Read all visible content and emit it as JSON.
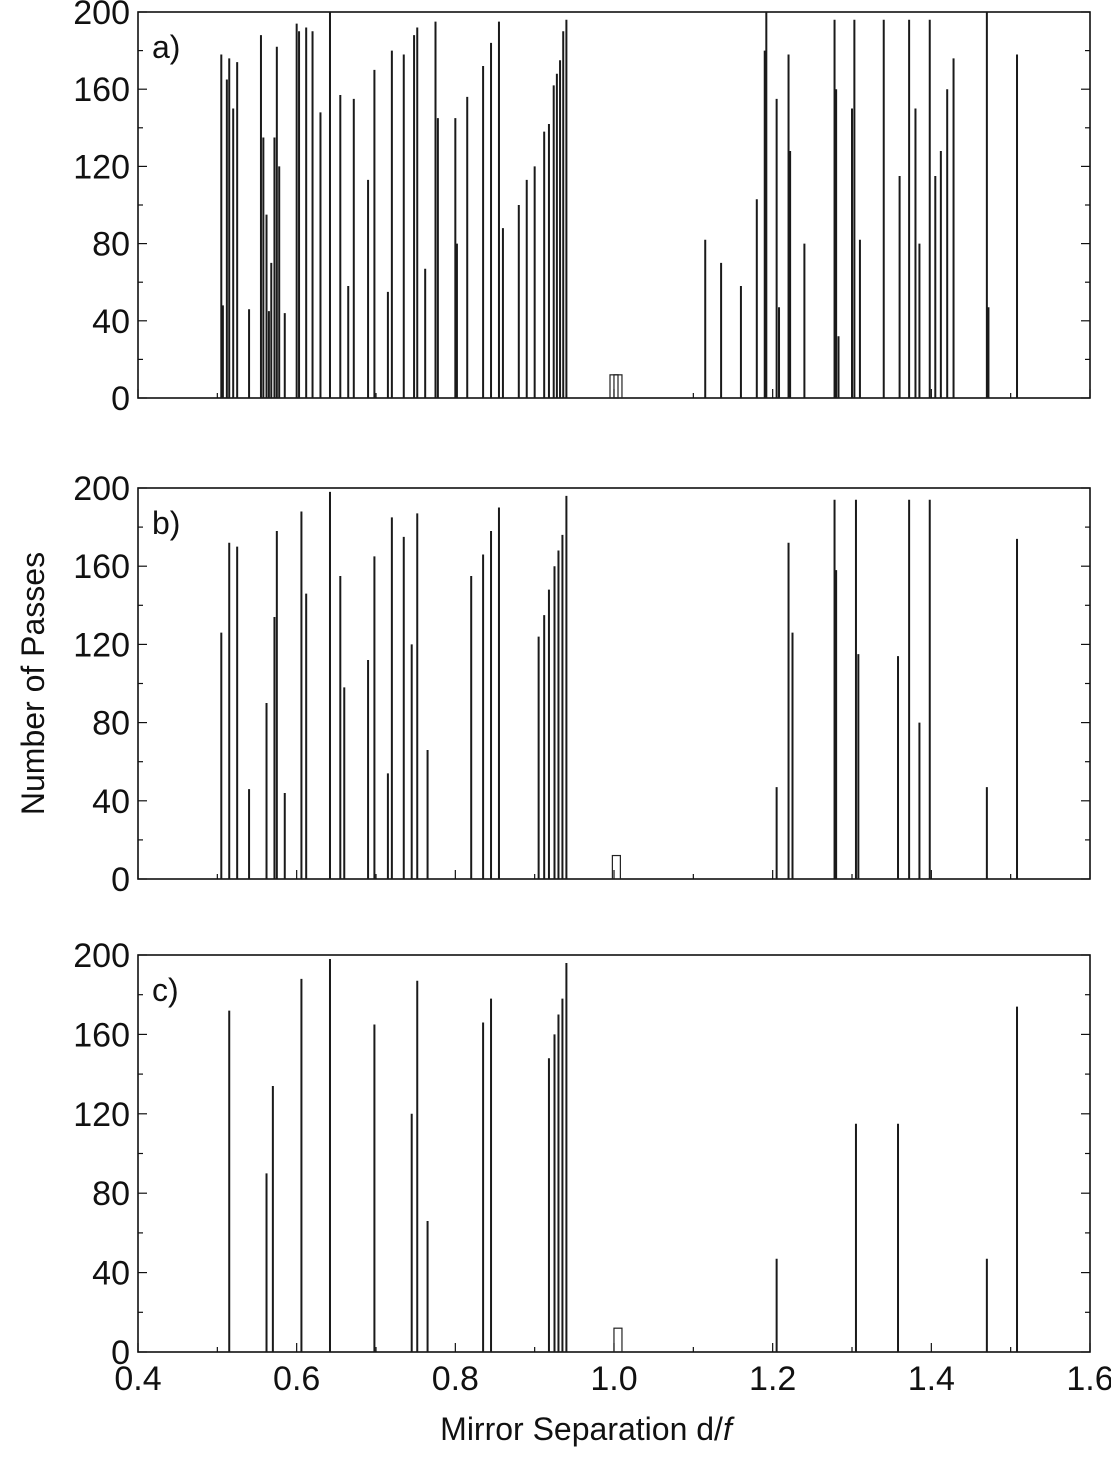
{
  "chart_data": [
    {
      "type": "bar",
      "panel_label": "a)",
      "xlim": [
        0.4,
        1.6
      ],
      "ylim": [
        0,
        200
      ],
      "y_ticks": [
        "0",
        "40",
        "80",
        "120",
        "160",
        "200"
      ],
      "grid": false,
      "bars": [
        {
          "x": 0.505,
          "y": 178
        },
        {
          "x": 0.507,
          "y": 48
        },
        {
          "x": 0.512,
          "y": 165
        },
        {
          "x": 0.515,
          "y": 176
        },
        {
          "x": 0.52,
          "y": 150
        },
        {
          "x": 0.525,
          "y": 174
        },
        {
          "x": 0.54,
          "y": 46
        },
        {
          "x": 0.555,
          "y": 188
        },
        {
          "x": 0.558,
          "y": 135
        },
        {
          "x": 0.562,
          "y": 95
        },
        {
          "x": 0.565,
          "y": 45
        },
        {
          "x": 0.568,
          "y": 70
        },
        {
          "x": 0.572,
          "y": 135
        },
        {
          "x": 0.575,
          "y": 182
        },
        {
          "x": 0.578,
          "y": 120
        },
        {
          "x": 0.585,
          "y": 44
        },
        {
          "x": 0.6,
          "y": 194
        },
        {
          "x": 0.603,
          "y": 190
        },
        {
          "x": 0.612,
          "y": 192
        },
        {
          "x": 0.62,
          "y": 190
        },
        {
          "x": 0.63,
          "y": 148
        },
        {
          "x": 0.642,
          "y": 200
        },
        {
          "x": 0.655,
          "y": 157
        },
        {
          "x": 0.665,
          "y": 58
        },
        {
          "x": 0.672,
          "y": 155
        },
        {
          "x": 0.69,
          "y": 113
        },
        {
          "x": 0.698,
          "y": 170
        },
        {
          "x": 0.715,
          "y": 55
        },
        {
          "x": 0.72,
          "y": 180
        },
        {
          "x": 0.735,
          "y": 178
        },
        {
          "x": 0.748,
          "y": 188
        },
        {
          "x": 0.752,
          "y": 192
        },
        {
          "x": 0.762,
          "y": 67
        },
        {
          "x": 0.775,
          "y": 195
        },
        {
          "x": 0.778,
          "y": 145
        },
        {
          "x": 0.8,
          "y": 145
        },
        {
          "x": 0.802,
          "y": 80
        },
        {
          "x": 0.815,
          "y": 156
        },
        {
          "x": 0.835,
          "y": 172
        },
        {
          "x": 0.845,
          "y": 184
        },
        {
          "x": 0.855,
          "y": 195
        },
        {
          "x": 0.86,
          "y": 88
        },
        {
          "x": 0.88,
          "y": 100
        },
        {
          "x": 0.89,
          "y": 113
        },
        {
          "x": 0.9,
          "y": 120
        },
        {
          "x": 0.912,
          "y": 138
        },
        {
          "x": 0.918,
          "y": 142
        },
        {
          "x": 0.924,
          "y": 162
        },
        {
          "x": 0.928,
          "y": 168
        },
        {
          "x": 0.932,
          "y": 175
        },
        {
          "x": 0.936,
          "y": 190
        },
        {
          "x": 0.94,
          "y": 196
        },
        {
          "x": 1.0,
          "y": 12
        },
        {
          "x": 1.005,
          "y": 12
        },
        {
          "x": 1.115,
          "y": 82
        },
        {
          "x": 1.135,
          "y": 70
        },
        {
          "x": 1.16,
          "y": 58
        },
        {
          "x": 1.18,
          "y": 103
        },
        {
          "x": 1.19,
          "y": 180
        },
        {
          "x": 1.192,
          "y": 200
        },
        {
          "x": 1.205,
          "y": 155
        },
        {
          "x": 1.208,
          "y": 47
        },
        {
          "x": 1.22,
          "y": 178
        },
        {
          "x": 1.222,
          "y": 128
        },
        {
          "x": 1.24,
          "y": 80
        },
        {
          "x": 1.278,
          "y": 196
        },
        {
          "x": 1.28,
          "y": 160
        },
        {
          "x": 1.283,
          "y": 32
        },
        {
          "x": 1.3,
          "y": 150
        },
        {
          "x": 1.303,
          "y": 196
        },
        {
          "x": 1.31,
          "y": 82
        },
        {
          "x": 1.34,
          "y": 196
        },
        {
          "x": 1.36,
          "y": 115
        },
        {
          "x": 1.372,
          "y": 196
        },
        {
          "x": 1.38,
          "y": 150
        },
        {
          "x": 1.385,
          "y": 80
        },
        {
          "x": 1.398,
          "y": 196
        },
        {
          "x": 1.405,
          "y": 115
        },
        {
          "x": 1.412,
          "y": 128
        },
        {
          "x": 1.42,
          "y": 160
        },
        {
          "x": 1.428,
          "y": 176
        },
        {
          "x": 1.47,
          "y": 200
        },
        {
          "x": 1.472,
          "y": 47
        },
        {
          "x": 1.508,
          "y": 178
        }
      ]
    },
    {
      "type": "bar",
      "panel_label": "b)",
      "xlim": [
        0.4,
        1.6
      ],
      "ylim": [
        0,
        200
      ],
      "y_ticks": [
        "0",
        "40",
        "80",
        "120",
        "160",
        "200"
      ],
      "ylabel": "Number of Passes",
      "grid": false,
      "bars": [
        {
          "x": 0.505,
          "y": 126
        },
        {
          "x": 0.515,
          "y": 172
        },
        {
          "x": 0.525,
          "y": 170
        },
        {
          "x": 0.54,
          "y": 46
        },
        {
          "x": 0.562,
          "y": 90
        },
        {
          "x": 0.572,
          "y": 134
        },
        {
          "x": 0.575,
          "y": 178
        },
        {
          "x": 0.585,
          "y": 44
        },
        {
          "x": 0.606,
          "y": 188
        },
        {
          "x": 0.612,
          "y": 146
        },
        {
          "x": 0.642,
          "y": 198
        },
        {
          "x": 0.655,
          "y": 155
        },
        {
          "x": 0.66,
          "y": 98
        },
        {
          "x": 0.69,
          "y": 112
        },
        {
          "x": 0.698,
          "y": 165
        },
        {
          "x": 0.715,
          "y": 54
        },
        {
          "x": 0.72,
          "y": 185
        },
        {
          "x": 0.735,
          "y": 175
        },
        {
          "x": 0.745,
          "y": 120
        },
        {
          "x": 0.752,
          "y": 187
        },
        {
          "x": 0.765,
          "y": 66
        },
        {
          "x": 0.82,
          "y": 155
        },
        {
          "x": 0.835,
          "y": 166
        },
        {
          "x": 0.845,
          "y": 178
        },
        {
          "x": 0.855,
          "y": 190
        },
        {
          "x": 0.905,
          "y": 124
        },
        {
          "x": 0.912,
          "y": 135
        },
        {
          "x": 0.918,
          "y": 148
        },
        {
          "x": 0.925,
          "y": 160
        },
        {
          "x": 0.93,
          "y": 168
        },
        {
          "x": 0.935,
          "y": 176
        },
        {
          "x": 0.94,
          "y": 196
        },
        {
          "x": 1.003,
          "y": 12
        },
        {
          "x": 1.205,
          "y": 47
        },
        {
          "x": 1.22,
          "y": 172
        },
        {
          "x": 1.225,
          "y": 126
        },
        {
          "x": 1.278,
          "y": 194
        },
        {
          "x": 1.28,
          "y": 158
        },
        {
          "x": 1.305,
          "y": 194
        },
        {
          "x": 1.308,
          "y": 115
        },
        {
          "x": 1.358,
          "y": 114
        },
        {
          "x": 1.372,
          "y": 194
        },
        {
          "x": 1.385,
          "y": 80
        },
        {
          "x": 1.398,
          "y": 194
        },
        {
          "x": 1.47,
          "y": 47
        },
        {
          "x": 1.508,
          "y": 174
        }
      ]
    },
    {
      "type": "bar",
      "panel_label": "c)",
      "xlim": [
        0.4,
        1.6
      ],
      "ylim": [
        0,
        200
      ],
      "y_ticks": [
        "0",
        "40",
        "80",
        "120",
        "160",
        "200"
      ],
      "x_ticks": [
        "0.4",
        "0.6",
        "0.8",
        "1.0",
        "1.2",
        "1.4",
        "1.6"
      ],
      "xlabel_parts": [
        "Mirror Separation d/",
        "f"
      ],
      "grid": false,
      "bars": [
        {
          "x": 0.515,
          "y": 172
        },
        {
          "x": 0.562,
          "y": 90
        },
        {
          "x": 0.57,
          "y": 134
        },
        {
          "x": 0.606,
          "y": 188
        },
        {
          "x": 0.642,
          "y": 198
        },
        {
          "x": 0.698,
          "y": 165
        },
        {
          "x": 0.745,
          "y": 120
        },
        {
          "x": 0.752,
          "y": 187
        },
        {
          "x": 0.765,
          "y": 66
        },
        {
          "x": 0.835,
          "y": 166
        },
        {
          "x": 0.845,
          "y": 178
        },
        {
          "x": 0.918,
          "y": 148
        },
        {
          "x": 0.925,
          "y": 160
        },
        {
          "x": 0.93,
          "y": 170
        },
        {
          "x": 0.935,
          "y": 178
        },
        {
          "x": 0.94,
          "y": 196
        },
        {
          "x": 1.005,
          "y": 12
        },
        {
          "x": 1.205,
          "y": 47
        },
        {
          "x": 1.305,
          "y": 115
        },
        {
          "x": 1.358,
          "y": 115
        },
        {
          "x": 1.47,
          "y": 47
        },
        {
          "x": 1.508,
          "y": 174
        }
      ]
    }
  ]
}
